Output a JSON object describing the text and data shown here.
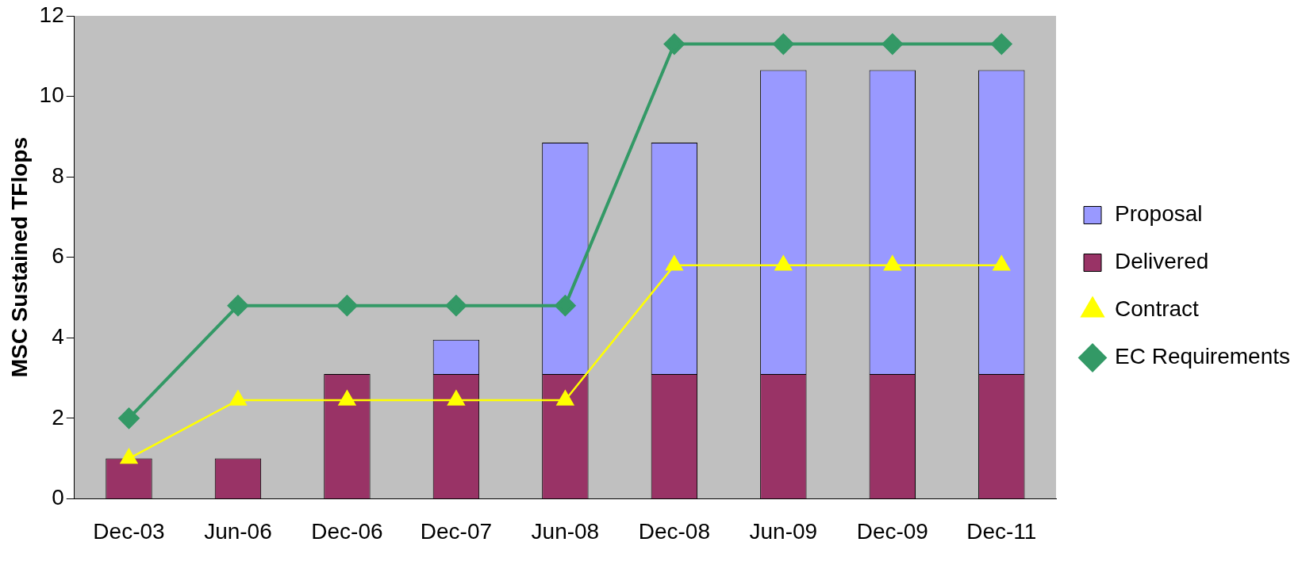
{
  "chart_data": {
    "type": "bar",
    "ylabel": "MSC Sustained TFlops",
    "categories": [
      "Dec-03",
      "Jun-06",
      "Dec-06",
      "Dec-07",
      "Jun-08",
      "Dec-08",
      "Jun-09",
      "Dec-09",
      "Dec-11"
    ],
    "stacked": true,
    "ylim": [
      0,
      12
    ],
    "yticks": [
      0,
      2,
      4,
      6,
      8,
      10,
      12
    ],
    "grid": false,
    "legend": "right",
    "series": [
      {
        "name": "Delivered",
        "color": "#993366",
        "values": [
          1,
          1,
          3.1,
          3.1,
          3.1,
          3.1,
          3.1,
          3.1,
          3.1
        ]
      },
      {
        "name": "Proposal",
        "color": "#9999ff",
        "values": [
          0,
          0,
          0,
          0.85,
          5.75,
          5.75,
          7.55,
          7.55,
          7.55
        ]
      },
      {
        "name": "Contract",
        "type": "line",
        "color": "#ffff00",
        "marker": "triangle",
        "values": [
          1,
          2.45,
          2.45,
          2.45,
          2.45,
          5.8,
          5.8,
          5.8,
          5.8
        ]
      },
      {
        "name": "EC Requirements",
        "type": "line",
        "color": "#339966",
        "marker": "diamond",
        "values": [
          2,
          4.8,
          4.8,
          4.8,
          4.8,
          11.3,
          11.3,
          11.3,
          11.3
        ]
      }
    ]
  }
}
